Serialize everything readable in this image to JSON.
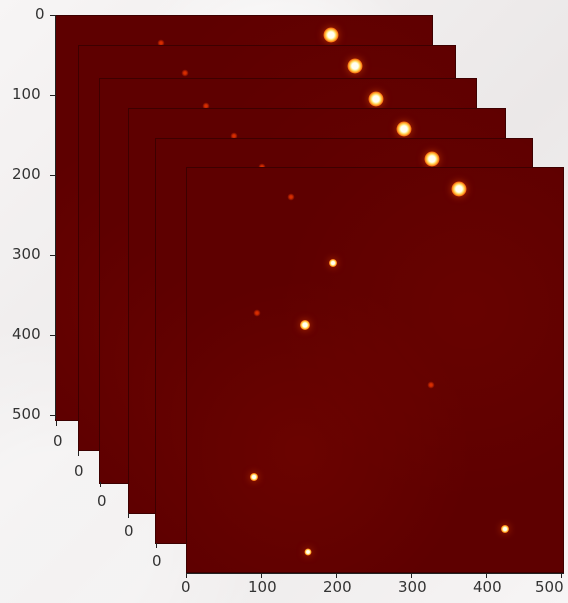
{
  "axes": {
    "y_ticks": [
      "0",
      "100",
      "200",
      "300",
      "400",
      "500"
    ],
    "x_ticks": [
      "0",
      "100",
      "200",
      "300",
      "400",
      "500"
    ],
    "small_zero_labels": [
      "0",
      "0",
      "0",
      "0",
      "0"
    ]
  }
}
